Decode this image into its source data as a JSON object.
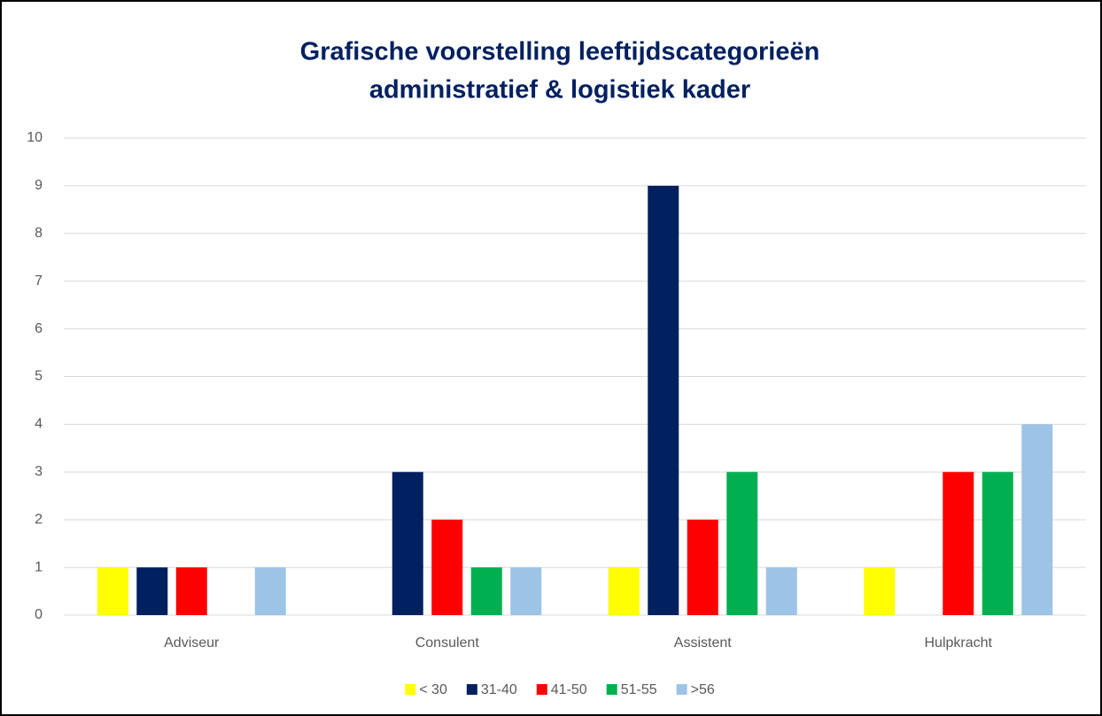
{
  "chart_data": {
    "type": "bar",
    "title": [
      "Grafische voorstelling leeftijdscategorieën",
      "administratief & logistiek kader"
    ],
    "categories": [
      "Adviseur",
      "Consulent",
      "Assistent",
      "Hulpkracht"
    ],
    "series": [
      {
        "name": "< 30",
        "color": "#ffff00",
        "values": [
          1,
          0,
          1,
          1
        ]
      },
      {
        "name": "31-40",
        "color": "#002060",
        "values": [
          1,
          3,
          9,
          0
        ]
      },
      {
        "name": "41-50",
        "color": "#ff0000",
        "values": [
          1,
          2,
          2,
          3
        ]
      },
      {
        "name": "51-55",
        "color": "#00b050",
        "values": [
          0,
          1,
          3,
          3
        ]
      },
      {
        "name": ">56",
        "color": "#9dc3e6",
        "values": [
          1,
          1,
          1,
          4
        ]
      }
    ],
    "ylim": [
      0,
      10
    ],
    "yticks": [
      0,
      1,
      2,
      3,
      4,
      5,
      6,
      7,
      8,
      9,
      10
    ],
    "grid": true,
    "legend": "bottom"
  }
}
